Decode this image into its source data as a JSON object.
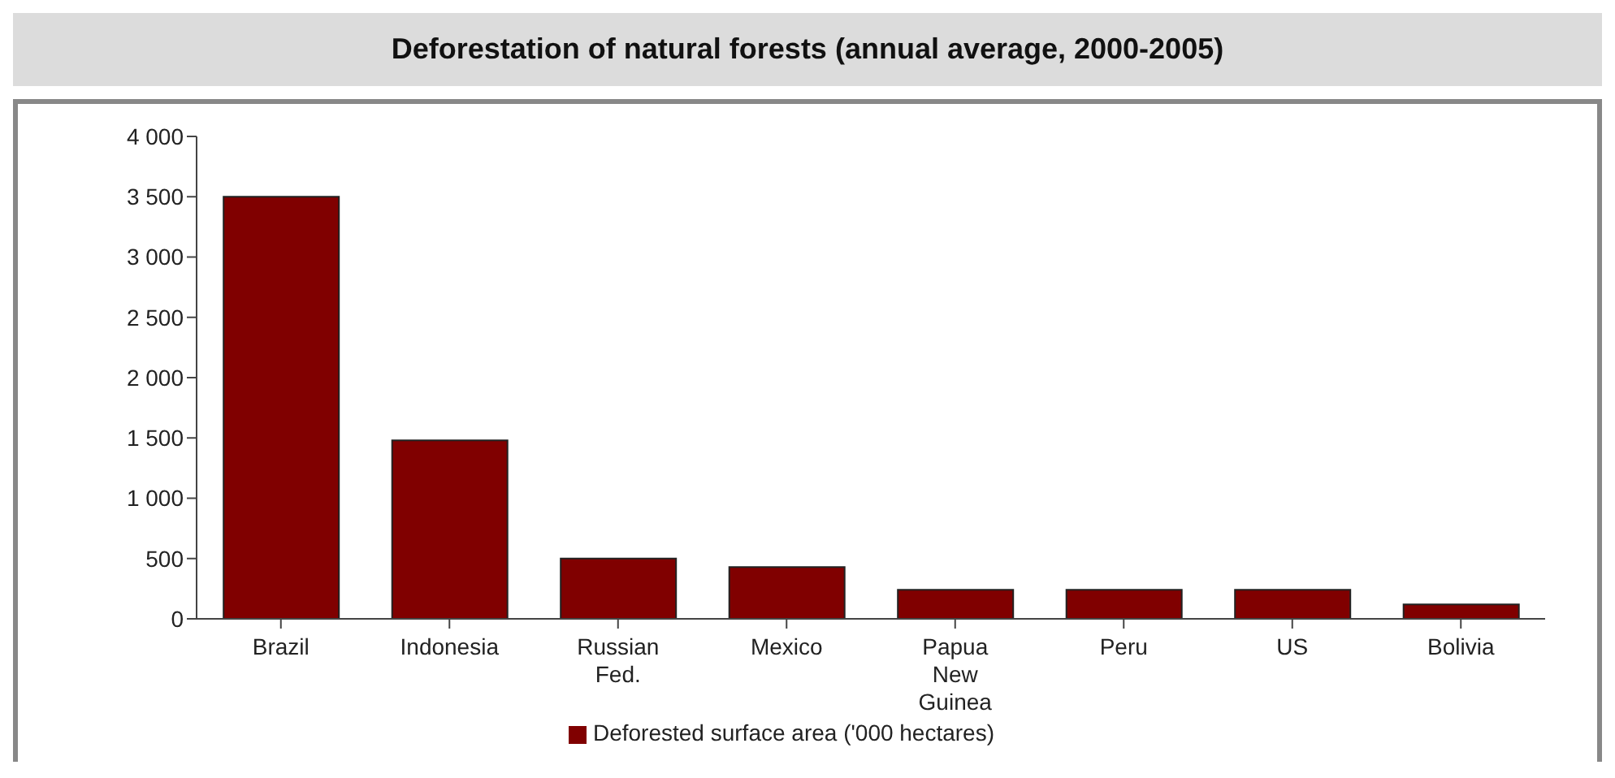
{
  "chart_data": {
    "type": "bar",
    "title": "Deforestation of natural forests (annual average, 2000-2005)",
    "categories": [
      "Brazil",
      "Indonesia",
      "Russian Fed.",
      "Mexico",
      "Papua New Guinea",
      "Peru",
      "US",
      "Bolivia"
    ],
    "series": [
      {
        "name": "Deforested surface area ('000 hectares)",
        "color": "#800000",
        "values": [
          3500,
          1480,
          500,
          430,
          240,
          240,
          240,
          120
        ]
      }
    ],
    "ylim": [
      0,
      4000
    ],
    "yticks": [
      {
        "value": 0,
        "label": "0"
      },
      {
        "value": 500,
        "label": "500"
      },
      {
        "value": 1000,
        "label": "1 000"
      },
      {
        "value": 1500,
        "label": "1 500"
      },
      {
        "value": 2000,
        "label": "2 000"
      },
      {
        "value": 2500,
        "label": "2 500"
      },
      {
        "value": 3000,
        "label": "3 000"
      },
      {
        "value": 3500,
        "label": "3 500"
      },
      {
        "value": 4000,
        "label": "4 000"
      }
    ],
    "grid": false,
    "legend": "bottom"
  }
}
